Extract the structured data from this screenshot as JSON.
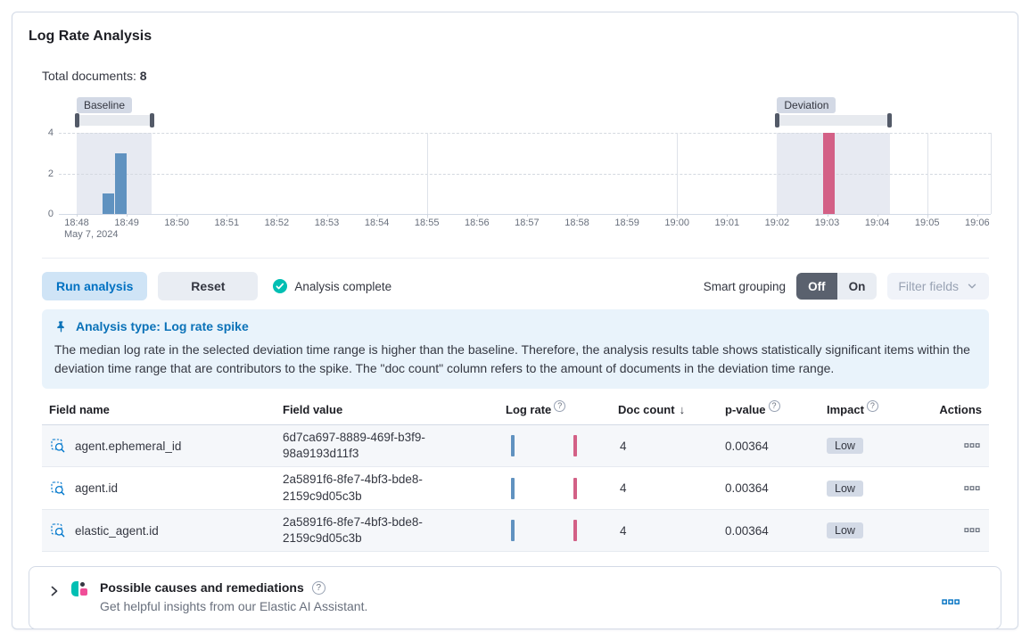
{
  "page": {
    "title": "Log Rate Analysis"
  },
  "summary": {
    "label": "Total documents: ",
    "value": "8"
  },
  "icons": {
    "question": "?",
    "sort_desc": "↓"
  },
  "colors": {
    "primary_blue": "#0071C2",
    "bar_baseline": "#6092C0",
    "bar_deviation": "#D36086",
    "success_teal": "#00BFB3",
    "badge_bg": "#D3DAE6",
    "callout_bg": "#E9F3FB"
  },
  "chart_data": {
    "type": "bar",
    "title": "",
    "xlabel": "",
    "ylabel": "",
    "ylim": [
      0,
      4
    ],
    "y_ticks": [
      0,
      2,
      4
    ],
    "x_ticks": [
      "18:48",
      "18:49",
      "18:50",
      "18:51",
      "18:52",
      "18:53",
      "18:54",
      "18:55",
      "18:56",
      "18:57",
      "18:58",
      "18:59",
      "19:00",
      "19:01",
      "19:02",
      "19:03",
      "19:04",
      "19:05",
      "19:06"
    ],
    "x_axis_date": "May 7, 2024",
    "x_gridlines": [
      "18:55",
      "19:00",
      "19:05"
    ],
    "series": [
      {
        "name": "Baseline",
        "color": "#6092C0",
        "bars": [
          {
            "start": "18:48:30",
            "end": "18:48:45",
            "value": 1
          },
          {
            "start": "18:48:45",
            "end": "18:49:00",
            "value": 3
          }
        ]
      },
      {
        "name": "Deviation",
        "color": "#D36086",
        "bars": [
          {
            "start": "19:02:55",
            "end": "19:03:10",
            "value": 4
          }
        ]
      }
    ],
    "windows": [
      {
        "label": "Baseline",
        "start": "18:48:00",
        "end": "18:49:30"
      },
      {
        "label": "Deviation",
        "start": "19:02:00",
        "end": "19:04:15"
      }
    ]
  },
  "controls": {
    "run": "Run analysis",
    "reset": "Reset",
    "status": "Analysis complete",
    "smart_grouping_label": "Smart grouping",
    "off": "Off",
    "on": "On",
    "filter_fields": "Filter fields"
  },
  "callout": {
    "title": "Analysis type: Log rate spike",
    "body": "The median log rate in the selected deviation time range is higher than the baseline. Therefore, the analysis results table shows statistically significant items within the deviation time range that are contributors to the spike. The \"doc count\" column refers to the amount of documents in the deviation time range."
  },
  "table": {
    "headers": {
      "field_name": "Field name",
      "field_value": "Field value",
      "log_rate": "Log rate",
      "doc_count": "Doc count",
      "p_value": "p-value",
      "impact": "Impact",
      "actions": "Actions"
    },
    "rows": [
      {
        "field_name": "agent.ephemeral_id",
        "field_value": "6d7ca697-8889-469f-b3f9-98a9193d11f3",
        "doc_count": "4",
        "p_value": "0.00364",
        "impact": "Low"
      },
      {
        "field_name": "agent.id",
        "field_value": "2a5891f6-8fe7-4bf3-bde8-2159c9d05c3b",
        "doc_count": "4",
        "p_value": "0.00364",
        "impact": "Low"
      },
      {
        "field_name": "elastic_agent.id",
        "field_value": "2a5891f6-8fe7-4bf3-bde8-2159c9d05c3b",
        "doc_count": "4",
        "p_value": "0.00364",
        "impact": "Low"
      }
    ]
  },
  "footer": {
    "title": "Possible causes and remediations",
    "subtitle": "Get helpful insights from our Elastic AI Assistant."
  }
}
